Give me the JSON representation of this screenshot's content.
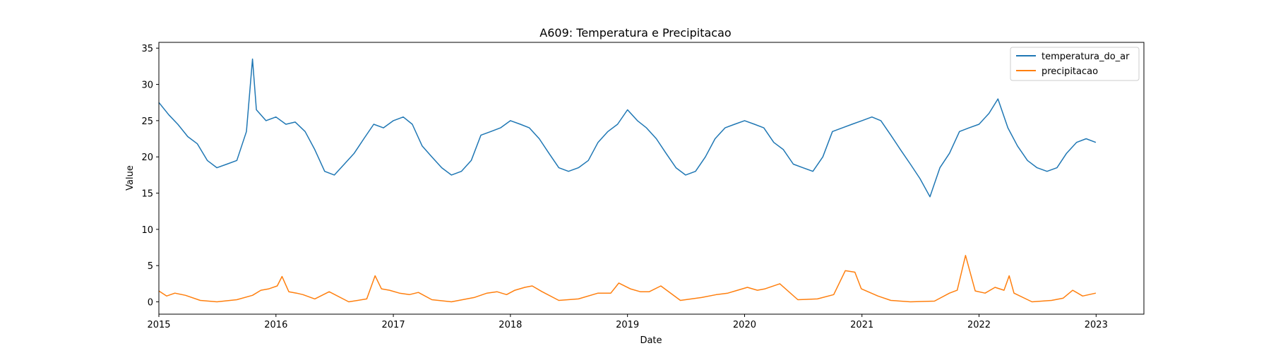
{
  "chart_data": {
    "type": "line",
    "title": "A609: Temperatura e Precipitacao",
    "xlabel": "Date",
    "ylabel": "Value",
    "x_ticks": [
      "2015",
      "2016",
      "2017",
      "2018",
      "2019",
      "2020",
      "2021",
      "2022",
      "2023"
    ],
    "y_ticks": [
      0,
      5,
      10,
      15,
      20,
      25,
      30,
      35
    ],
    "xlim": [
      "2015-01-01",
      "2023-05-30"
    ],
    "ylim": [
      -1.7,
      35.8
    ],
    "legend_position": "top-right",
    "grid": false,
    "series": [
      {
        "name": "temperatura_do_ar",
        "color": "#1f77b4",
        "x": [
          "2015-01-01",
          "2015-02-01",
          "2015-03-01",
          "2015-04-01",
          "2015-05-01",
          "2015-06-01",
          "2015-07-01",
          "2015-08-01",
          "2015-09-01",
          "2015-10-01",
          "2015-10-20",
          "2015-11-01",
          "2015-12-01",
          "2016-01-01",
          "2016-02-01",
          "2016-03-01",
          "2016-04-01",
          "2016-05-01",
          "2016-06-01",
          "2016-07-01",
          "2016-08-01",
          "2016-09-01",
          "2016-10-01",
          "2016-11-01",
          "2016-12-01",
          "2017-01-01",
          "2017-02-01",
          "2017-03-01",
          "2017-04-01",
          "2017-05-01",
          "2017-06-01",
          "2017-07-01",
          "2017-08-01",
          "2017-09-01",
          "2017-10-01",
          "2017-11-01",
          "2017-12-01",
          "2018-01-01",
          "2018-02-01",
          "2018-03-01",
          "2018-04-01",
          "2018-05-01",
          "2018-06-01",
          "2018-07-01",
          "2018-08-01",
          "2018-09-01",
          "2018-10-01",
          "2018-11-01",
          "2018-12-01",
          "2019-01-01",
          "2019-02-01",
          "2019-03-01",
          "2019-04-01",
          "2019-05-01",
          "2019-06-01",
          "2019-07-01",
          "2019-08-01",
          "2019-09-01",
          "2019-10-01",
          "2019-11-01",
          "2019-12-01",
          "2020-01-01",
          "2020-02-01",
          "2020-03-01",
          "2020-04-01",
          "2020-05-01",
          "2020-06-01",
          "2020-07-01",
          "2020-08-01",
          "2020-09-01",
          "2020-10-01",
          "2020-11-01",
          "2020-12-01",
          "2021-01-01",
          "2021-02-01",
          "2021-03-01",
          "2021-04-01",
          "2021-05-01",
          "2021-06-01",
          "2021-07-01",
          "2021-08-01",
          "2021-09-01",
          "2021-10-01",
          "2021-11-01",
          "2021-12-01",
          "2022-01-01",
          "2022-02-01",
          "2022-03-01",
          "2022-04-01",
          "2022-05-01",
          "2022-06-01",
          "2022-07-01",
          "2022-08-01",
          "2022-09-01",
          "2022-10-01",
          "2022-11-01",
          "2022-12-01",
          "2022-12-31"
        ],
        "y": [
          27.5,
          25.8,
          24.5,
          22.8,
          21.8,
          19.5,
          18.5,
          19.0,
          19.5,
          23.5,
          33.5,
          26.5,
          25.0,
          25.5,
          24.5,
          24.8,
          23.5,
          21.0,
          18.0,
          17.5,
          19.0,
          20.5,
          22.5,
          24.5,
          24.0,
          25.0,
          25.5,
          24.5,
          21.5,
          20.0,
          18.5,
          17.5,
          18.0,
          19.5,
          23.0,
          23.5,
          24.0,
          25.0,
          24.5,
          24.0,
          22.5,
          20.5,
          18.5,
          18.0,
          18.5,
          19.5,
          22.0,
          23.5,
          24.5,
          26.5,
          25.0,
          24.0,
          22.5,
          20.5,
          18.5,
          17.5,
          18.0,
          20.0,
          22.5,
          24.0,
          24.5,
          25.0,
          24.5,
          24.0,
          22.0,
          21.0,
          19.0,
          18.5,
          18.0,
          20.0,
          23.5,
          24.0,
          24.5,
          25.0,
          25.5,
          25.0,
          23.0,
          21.0,
          19.0,
          17.0,
          14.5,
          18.5,
          20.5,
          23.5,
          24.0,
          24.5,
          26.0,
          28.0,
          24.0,
          21.5,
          19.5,
          18.5,
          18.0,
          18.5,
          20.5,
          22.0,
          22.5,
          22.0
        ]
      },
      {
        "name": "precipitacao",
        "color": "#ff7f0e",
        "x": [
          "2015-01-01",
          "2015-01-25",
          "2015-02-20",
          "2015-03-25",
          "2015-05-10",
          "2015-07-01",
          "2015-09-01",
          "2015-10-20",
          "2015-11-15",
          "2015-12-10",
          "2016-01-05",
          "2016-01-20",
          "2016-02-10",
          "2016-03-05",
          "2016-03-25",
          "2016-05-01",
          "2016-06-15",
          "2016-08-15",
          "2016-10-10",
          "2016-11-05",
          "2016-11-25",
          "2016-12-20",
          "2017-01-20",
          "2017-02-20",
          "2017-03-20",
          "2017-05-01",
          "2017-07-01",
          "2017-09-10",
          "2017-10-20",
          "2017-11-20",
          "2017-12-20",
          "2018-01-15",
          "2018-02-15",
          "2018-03-10",
          "2018-04-10",
          "2018-06-01",
          "2018-08-01",
          "2018-10-01",
          "2018-11-10",
          "2018-12-05",
          "2019-01-10",
          "2019-02-10",
          "2019-03-10",
          "2019-04-15",
          "2019-06-15",
          "2019-08-20",
          "2019-10-05",
          "2019-11-10",
          "2019-12-10",
          "2020-01-10",
          "2020-02-10",
          "2020-03-05",
          "2020-04-20",
          "2020-06-15",
          "2020-08-15",
          "2020-10-05",
          "2020-11-10",
          "2020-12-10",
          "2020-12-30",
          "2021-01-20",
          "2021-02-20",
          "2021-04-01",
          "2021-06-01",
          "2021-08-15",
          "2021-10-01",
          "2021-10-25",
          "2021-11-20",
          "2021-12-20",
          "2022-01-20",
          "2022-02-20",
          "2022-03-20",
          "2022-04-05",
          "2022-04-20",
          "2022-06-15",
          "2022-08-15",
          "2022-09-20",
          "2022-10-20",
          "2022-11-20",
          "2022-12-31"
        ],
        "y": [
          1.5,
          0.8,
          1.2,
          0.9,
          0.2,
          0.0,
          0.3,
          0.9,
          1.6,
          1.8,
          2.2,
          3.5,
          1.4,
          1.2,
          1.0,
          0.4,
          1.4,
          0.0,
          0.4,
          3.6,
          1.8,
          1.6,
          1.2,
          1.0,
          1.3,
          0.3,
          0.0,
          0.6,
          1.2,
          1.4,
          1.0,
          1.6,
          2.0,
          2.2,
          1.4,
          0.2,
          0.4,
          1.2,
          1.2,
          2.6,
          1.8,
          1.4,
          1.4,
          2.2,
          0.2,
          0.6,
          1.0,
          1.2,
          1.6,
          2.0,
          1.6,
          1.8,
          2.5,
          0.3,
          0.4,
          1.0,
          4.3,
          4.1,
          1.8,
          1.4,
          0.8,
          0.2,
          0.0,
          0.1,
          1.2,
          1.6,
          6.4,
          1.5,
          1.2,
          2.0,
          1.6,
          3.6,
          1.2,
          0.0,
          0.2,
          0.5,
          1.6,
          0.8,
          1.2
        ]
      }
    ]
  }
}
